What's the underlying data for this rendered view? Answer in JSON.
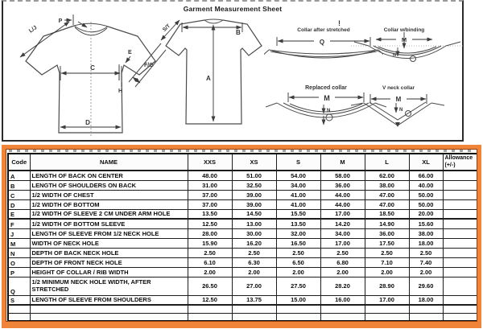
{
  "title": "Garment Measurement Sheet",
  "diagrams": {
    "front_shirt": {
      "p": "P",
      "lj": "L/J",
      "c": "C",
      "d": "D",
      "e": "E",
      "fg": "F/G",
      "h": "H"
    },
    "back_shirt": {
      "st": "S/T",
      "b": "B",
      "a": "A"
    },
    "collar_stretched": {
      "title": "Collar after stretched",
      "q": "Q"
    },
    "collar_binding": {
      "title": "Collar w/binding",
      "m": "M",
      "n": "N"
    },
    "collar_replaced": {
      "title": "Replaced collar",
      "m": "M",
      "n": "N"
    },
    "collar_vneck": {
      "title": "V neck collar",
      "m": "M",
      "n": "N"
    },
    "exclamation": "!"
  },
  "table": {
    "headers": [
      "Code",
      "NAME",
      "XXS",
      "XS",
      "S",
      "M",
      "L",
      "XL"
    ],
    "allowance": {
      "line1": "Allowance",
      "line2": "(+/-)"
    },
    "rows": [
      {
        "code": "A",
        "name": "LENGTH OF BACK ON CENTER",
        "values": [
          "48.00",
          "51.00",
          "54.00",
          "58.00",
          "62.00",
          "66.00"
        ]
      },
      {
        "code": "B",
        "name": "LENGTH OF SHOULDERS ON BACK",
        "values": [
          "31.00",
          "32.50",
          "34.00",
          "36.00",
          "38.00",
          "40.00"
        ]
      },
      {
        "code": "C",
        "name": "1/2 WIDTH OF CHEST",
        "values": [
          "37.00",
          "39.00",
          "41.00",
          "44.00",
          "47.00",
          "50.00"
        ]
      },
      {
        "code": "D",
        "name": "1/2 WIDTH OF BOTTOM",
        "values": [
          "37.00",
          "39.00",
          "41.00",
          "44.00",
          "47.00",
          "50.00"
        ]
      },
      {
        "code": "E",
        "name": "1/2 WIDTH OF SLEEVE 2 CM UNDER ARM HOLE",
        "values": [
          "13.50",
          "14.50",
          "15.50",
          "17.00",
          "18.50",
          "20.00"
        ]
      },
      {
        "code": "F",
        "name": "1/2 WIDTH OF BOTTOM SLEEVE",
        "values": [
          "12.50",
          "13.00",
          "13.50",
          "14.20",
          "14.90",
          "15.60"
        ]
      },
      {
        "code": "J",
        "name": "LENGTH OF SLEEVE FROM 1/2 NECK HOLE",
        "values": [
          "28.00",
          "30.00",
          "32.00",
          "34.00",
          "36.00",
          "38.00"
        ]
      },
      {
        "code": "M",
        "name": "WIDTH OF NECK HOLE",
        "values": [
          "15.90",
          "16.20",
          "16.50",
          "17.00",
          "17.50",
          "18.00"
        ]
      },
      {
        "code": "N",
        "name": "DEPTH OF BACK NECK HOLE",
        "values": [
          "2.50",
          "2.50",
          "2.50",
          "2.50",
          "2.50",
          "2.50"
        ]
      },
      {
        "code": "O",
        "name": "DEPTH OF FRONT NECK HOLE",
        "values": [
          "6.10",
          "6.30",
          "6.50",
          "6.80",
          "7.10",
          "7.40"
        ]
      },
      {
        "code": "P",
        "name": "HEIGHT OF COLLAR / RIB WIDTH",
        "values": [
          "2.00",
          "2.00",
          "2.00",
          "2.00",
          "2.00",
          "2.00"
        ]
      },
      {
        "code": "Q",
        "name": "1/2 MINIMUM NECK HOLE WIDTH, AFTER STRETCHED",
        "values": [
          "26.50",
          "27.00",
          "27.50",
          "28.20",
          "28.90",
          "29.60"
        ]
      },
      {
        "code": "S",
        "name": "LENGTH OF SLEEVE FROM SHOULDERS",
        "values": [
          "12.50",
          "13.75",
          "15.00",
          "16.00",
          "17.00",
          "18.00"
        ]
      }
    ],
    "empty_row_count": 2
  },
  "colors": {
    "border_orange": "#F08438",
    "border_orange_inner": "#93410F",
    "table_line": "#1a1a1a",
    "drawing_line": "#4a4a4a"
  }
}
